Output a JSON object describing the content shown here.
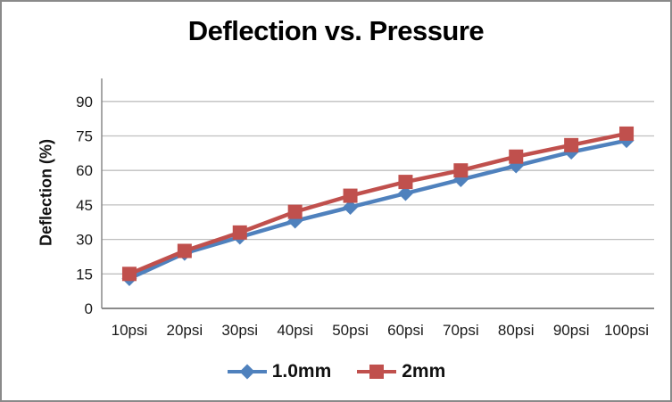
{
  "frame": {
    "border_color": "#8a8a8a",
    "background": "#ffffff"
  },
  "chart_data": {
    "type": "line",
    "title": "Deflection vs. Pressure",
    "ylabel": "Deflection (%)",
    "xlabel": "",
    "categories": [
      "10psi",
      "20psi",
      "30psi",
      "40psi",
      "50psi",
      "60psi",
      "70psi",
      "80psi",
      "90psi",
      "100psi"
    ],
    "series": [
      {
        "name": "1.0mm",
        "color": "#4F81BD",
        "marker": "diamond",
        "values": [
          13,
          24,
          31,
          38,
          44,
          50,
          56,
          62,
          68,
          73
        ]
      },
      {
        "name": "2mm",
        "color": "#C0504D",
        "marker": "square",
        "values": [
          15,
          25,
          33,
          42,
          49,
          55,
          60,
          66,
          71,
          76
        ]
      }
    ],
    "yticks": [
      0,
      15,
      30,
      45,
      60,
      75,
      90
    ],
    "ylim": [
      0,
      100
    ],
    "grid": "horizontal-only",
    "gridline_color": "#BFBFBF",
    "axis_color": "#8a8a8a",
    "tick_text_color": "#1a1a1a",
    "legend_position": "bottom"
  }
}
